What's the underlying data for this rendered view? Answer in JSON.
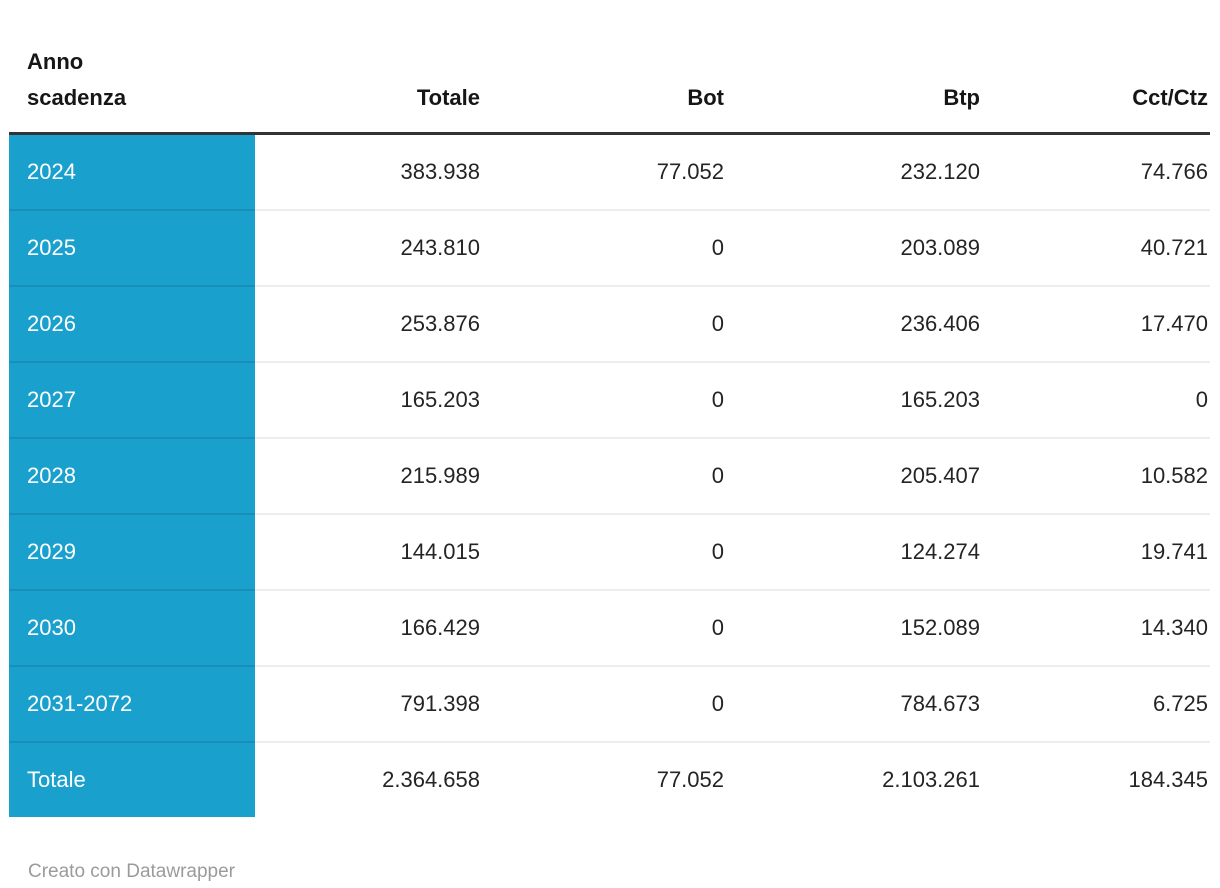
{
  "colors": {
    "accent_teal": "#1aa0cd",
    "header_rule": "#333333",
    "row_divider": "#ededed",
    "header_text": "#161616",
    "body_text": "#242424",
    "row_header_text": "#ffffff",
    "footer_text": "#9b9b9b"
  },
  "chart_data": {
    "type": "table",
    "title": "",
    "columns": [
      "Anno scadenza",
      "Totale",
      "Bot",
      "Btp",
      "Cct/Ctz"
    ],
    "header_display": [
      "Anno\nscadenza",
      "Totale",
      "Bot",
      "Btp",
      "Cct/Ctz"
    ],
    "first_column_is_row_header": true,
    "rows": [
      [
        "2024",
        "383.938",
        "77.052",
        "232.120",
        "74.766"
      ],
      [
        "2025",
        "243.810",
        "0",
        "203.089",
        "40.721"
      ],
      [
        "2026",
        "253.876",
        "0",
        "236.406",
        "17.470"
      ],
      [
        "2027",
        "165.203",
        "0",
        "165.203",
        "0"
      ],
      [
        "2028",
        "215.989",
        "0",
        "205.407",
        "10.582"
      ],
      [
        "2029",
        "144.015",
        "0",
        "124.274",
        "19.741"
      ],
      [
        "2030",
        "166.429",
        "0",
        "152.089",
        "14.340"
      ],
      [
        "2031-2072",
        "791.398",
        "0",
        "784.673",
        "6.725"
      ],
      [
        "Totale",
        "2.364.658",
        "77.052",
        "2.103.261",
        "184.345"
      ]
    ]
  },
  "footer": {
    "text": "Creato con Datawrapper"
  }
}
